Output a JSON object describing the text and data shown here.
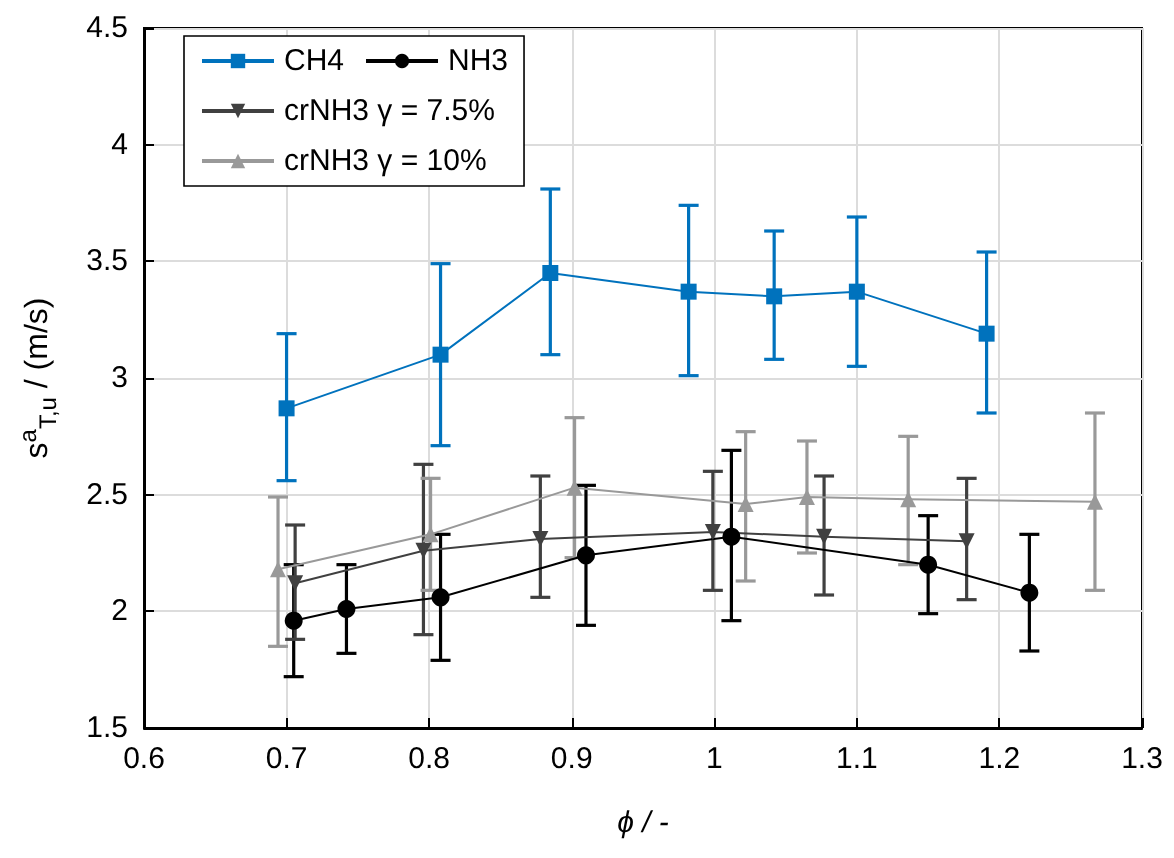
{
  "chart_data": {
    "type": "line",
    "xlabel": "ϕ / -",
    "ylabel": "s$^{a}$$_{T,u}$ / (m/s)",
    "xlim": [
      0.6,
      1.3
    ],
    "xticks": [
      0.6,
      0.7,
      0.8,
      0.9,
      1,
      1.1,
      1.2,
      1.3
    ],
    "ylim": [
      1.5,
      4.5
    ],
    "yticks": [
      1.5,
      2,
      2.5,
      3,
      3.5,
      4,
      4.5
    ],
    "grid": true,
    "legend": "top left",
    "line_style": "solid",
    "series": [
      {
        "name": "CH4",
        "color": "#0072bd",
        "marker": "square",
        "x": [
          0.7,
          0.808,
          0.885,
          0.982,
          1.042,
          1.1,
          1.191
        ],
        "values": [
          2.87,
          3.1,
          3.45,
          3.37,
          3.35,
          3.37,
          3.19
        ],
        "errors": [
          [
            2.56,
            3.19
          ],
          [
            2.71,
            3.49
          ],
          [
            3.1,
            3.81
          ],
          [
            3.01,
            3.74
          ],
          [
            3.08,
            3.63
          ],
          [
            3.05,
            3.69
          ],
          [
            2.85,
            3.54
          ]
        ]
      },
      {
        "name": "NH3",
        "color": "#000000",
        "marker": "circle",
        "x": [
          0.705,
          0.742,
          0.808,
          0.91,
          1.012,
          1.15,
          1.221
        ],
        "values": [
          1.96,
          2.01,
          2.06,
          2.24,
          2.32,
          2.2,
          2.08
        ],
        "errors": [
          [
            1.72,
            2.2
          ],
          [
            1.82,
            2.2
          ],
          [
            1.79,
            2.33
          ],
          [
            1.94,
            2.54
          ],
          [
            1.96,
            2.69
          ],
          [
            1.99,
            2.41
          ],
          [
            1.83,
            2.33
          ]
        ]
      },
      {
        "name": "crNH3 γ = 7.5%",
        "color": "#404040",
        "marker": "triangle-down",
        "x": [
          0.706,
          0.796,
          0.878,
          0.999,
          1.077,
          1.177
        ],
        "values": [
          2.12,
          2.26,
          2.31,
          2.34,
          2.32,
          2.3
        ],
        "errors": [
          [
            1.88,
            2.37
          ],
          [
            1.9,
            2.63
          ],
          [
            2.06,
            2.58
          ],
          [
            2.09,
            2.6
          ],
          [
            2.07,
            2.58
          ],
          [
            2.05,
            2.57
          ]
        ]
      },
      {
        "name": "crNH3 γ = 10%",
        "color": "#999999",
        "marker": "triangle",
        "x": [
          0.694,
          0.801,
          0.902,
          1.022,
          1.065,
          1.136,
          1.267
        ],
        "values": [
          2.18,
          2.33,
          2.53,
          2.46,
          2.49,
          2.48,
          2.47
        ],
        "errors": [
          [
            1.85,
            2.49
          ],
          [
            2.09,
            2.57
          ],
          [
            2.23,
            2.83
          ],
          [
            2.13,
            2.77
          ],
          [
            2.25,
            2.73
          ],
          [
            2.2,
            2.75
          ],
          [
            2.09,
            2.85
          ]
        ]
      }
    ]
  }
}
